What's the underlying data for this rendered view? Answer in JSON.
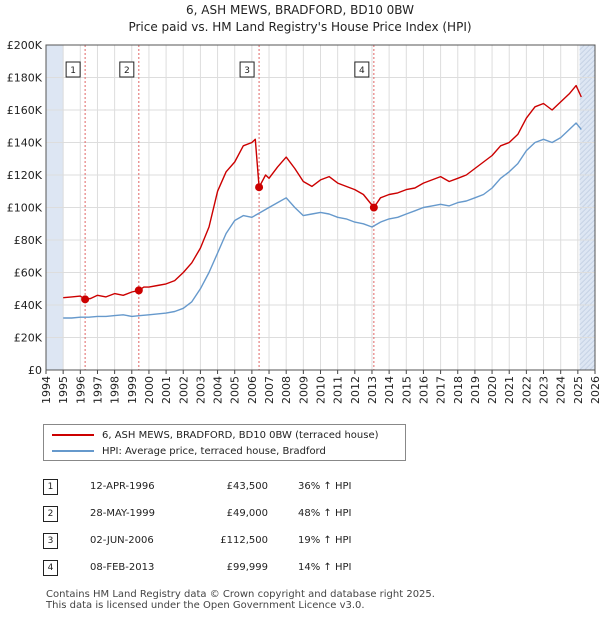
{
  "title": {
    "line1": "6, ASH MEWS, BRADFORD, BD10 0BW",
    "line2": "Price paid vs. HM Land Registry's House Price Index (HPI)"
  },
  "colors": {
    "property": "#cc0000",
    "hpi": "#6699cc",
    "marker": "#cc0000",
    "shade": "#dde6f3",
    "vline": "#e06666",
    "grid": "#dddddd"
  },
  "chart_data": {
    "type": "line",
    "title": "Price paid vs. HM Land Registry's House Price Index (HPI)",
    "xlabel": "",
    "ylabel": "",
    "xlim": [
      1994,
      2026
    ],
    "ylim": [
      0,
      200000
    ],
    "x_ticks": [
      "1994",
      "1995",
      "1996",
      "1997",
      "1998",
      "1999",
      "2000",
      "2001",
      "2002",
      "2003",
      "2004",
      "2005",
      "2006",
      "2007",
      "2008",
      "2009",
      "2010",
      "2011",
      "2012",
      "2013",
      "2014",
      "2015",
      "2016",
      "2017",
      "2018",
      "2019",
      "2020",
      "2021",
      "2022",
      "2023",
      "2024",
      "2025",
      "2026"
    ],
    "y_ticks": [
      {
        "value": 0,
        "label": "£0"
      },
      {
        "value": 20000,
        "label": "£20K"
      },
      {
        "value": 40000,
        "label": "£40K"
      },
      {
        "value": 60000,
        "label": "£60K"
      },
      {
        "value": 80000,
        "label": "£80K"
      },
      {
        "value": 100000,
        "label": "£100K"
      },
      {
        "value": 120000,
        "label": "£120K"
      },
      {
        "value": 140000,
        "label": "£140K"
      },
      {
        "value": 160000,
        "label": "£160K"
      },
      {
        "value": 180000,
        "label": "£180K"
      },
      {
        "value": 200000,
        "label": "£200K"
      }
    ],
    "grid": true,
    "shaded_ranges": [
      [
        1994,
        1995
      ],
      [
        2025.1,
        2026
      ]
    ],
    "series": [
      {
        "name": "6, ASH MEWS, BRADFORD, BD10 0BW (terraced house)",
        "color": "#cc0000",
        "x": [
          1995.0,
          1995.5,
          1996.0,
          1996.28,
          1996.6,
          1997.0,
          1997.5,
          1998.0,
          1998.5,
          1999.0,
          1999.41,
          1999.7,
          2000.0,
          2000.5,
          2001.0,
          2001.5,
          2002.0,
          2002.5,
          2003.0,
          2003.5,
          2004.0,
          2004.5,
          2005.0,
          2005.5,
          2006.0,
          2006.2,
          2006.42,
          2006.8,
          2007.0,
          2007.5,
          2008.0,
          2008.5,
          2009.0,
          2009.5,
          2010.0,
          2010.5,
          2011.0,
          2011.5,
          2012.0,
          2012.5,
          2013.11,
          2013.5,
          2014.0,
          2014.5,
          2015.0,
          2015.5,
          2016.0,
          2016.5,
          2017.0,
          2017.5,
          2018.0,
          2018.5,
          2019.0,
          2019.5,
          2020.0,
          2020.5,
          2021.0,
          2021.5,
          2022.0,
          2022.5,
          2023.0,
          2023.5,
          2024.0,
          2024.5,
          2024.9,
          2025.2
        ],
        "values": [
          44500,
          45000,
          45500,
          43500,
          44000,
          46000,
          45000,
          47000,
          46000,
          48000,
          49000,
          51000,
          51000,
          52000,
          53000,
          55000,
          60000,
          66000,
          75000,
          88000,
          110000,
          122000,
          128000,
          138000,
          140000,
          142000,
          112500,
          120000,
          118000,
          125000,
          131000,
          124000,
          116000,
          113000,
          117000,
          119000,
          115000,
          113000,
          111000,
          108000,
          99999,
          106000,
          108000,
          109000,
          111000,
          112000,
          115000,
          117000,
          119000,
          116000,
          118000,
          120000,
          124000,
          128000,
          132000,
          138000,
          140000,
          145000,
          155000,
          162000,
          164000,
          160000,
          165000,
          170000,
          175000,
          168000
        ]
      },
      {
        "name": "HPI: Average price, terraced house, Bradford",
        "color": "#6699cc",
        "x": [
          1995.0,
          1995.5,
          1996.0,
          1996.5,
          1997.0,
          1997.5,
          1998.0,
          1998.5,
          1999.0,
          1999.5,
          2000.0,
          2000.5,
          2001.0,
          2001.5,
          2002.0,
          2002.5,
          2003.0,
          2003.5,
          2004.0,
          2004.5,
          2005.0,
          2005.5,
          2006.0,
          2006.5,
          2007.0,
          2007.5,
          2008.0,
          2008.5,
          2009.0,
          2009.5,
          2010.0,
          2010.5,
          2011.0,
          2011.5,
          2012.0,
          2012.5,
          2013.0,
          2013.5,
          2014.0,
          2014.5,
          2015.0,
          2015.5,
          2016.0,
          2016.5,
          2017.0,
          2017.5,
          2018.0,
          2018.5,
          2019.0,
          2019.5,
          2020.0,
          2020.5,
          2021.0,
          2021.5,
          2022.0,
          2022.5,
          2023.0,
          2023.5,
          2024.0,
          2024.5,
          2024.9,
          2025.2
        ],
        "values": [
          32000,
          32000,
          32500,
          32500,
          33000,
          33000,
          33500,
          34000,
          33000,
          33500,
          34000,
          34500,
          35000,
          36000,
          38000,
          42000,
          50000,
          60000,
          72000,
          84000,
          92000,
          95000,
          94000,
          97000,
          100000,
          103000,
          106000,
          100000,
          95000,
          96000,
          97000,
          96000,
          94000,
          93000,
          91000,
          90000,
          88000,
          91000,
          93000,
          94000,
          96000,
          98000,
          100000,
          101000,
          102000,
          101000,
          103000,
          104000,
          106000,
          108000,
          112000,
          118000,
          122000,
          127000,
          135000,
          140000,
          142000,
          140000,
          143000,
          148000,
          152000,
          148000
        ]
      }
    ],
    "sales": [
      {
        "id": "1",
        "x": 1996.28,
        "value": 43500
      },
      {
        "id": "2",
        "x": 1999.41,
        "value": 49000
      },
      {
        "id": "3",
        "x": 2006.42,
        "value": 112500
      },
      {
        "id": "4",
        "x": 2013.11,
        "value": 99999
      }
    ]
  },
  "legend": {
    "property_label": "6, ASH MEWS, BRADFORD, BD10 0BW (terraced house)",
    "hpi_label": "HPI: Average price, terraced house, Bradford"
  },
  "transactions": [
    {
      "id": "1",
      "date": "12-APR-1996",
      "price": "£43,500",
      "change": "36% ↑ HPI"
    },
    {
      "id": "2",
      "date": "28-MAY-1999",
      "price": "£49,000",
      "change": "48% ↑ HPI"
    },
    {
      "id": "3",
      "date": "02-JUN-2006",
      "price": "£112,500",
      "change": "19% ↑ HPI"
    },
    {
      "id": "4",
      "date": "08-FEB-2013",
      "price": "£99,999",
      "change": "14% ↑ HPI"
    }
  ],
  "footer": {
    "line1": "Contains HM Land Registry data © Crown copyright and database right 2025.",
    "line2": "This data is licensed under the Open Government Licence v3.0."
  }
}
